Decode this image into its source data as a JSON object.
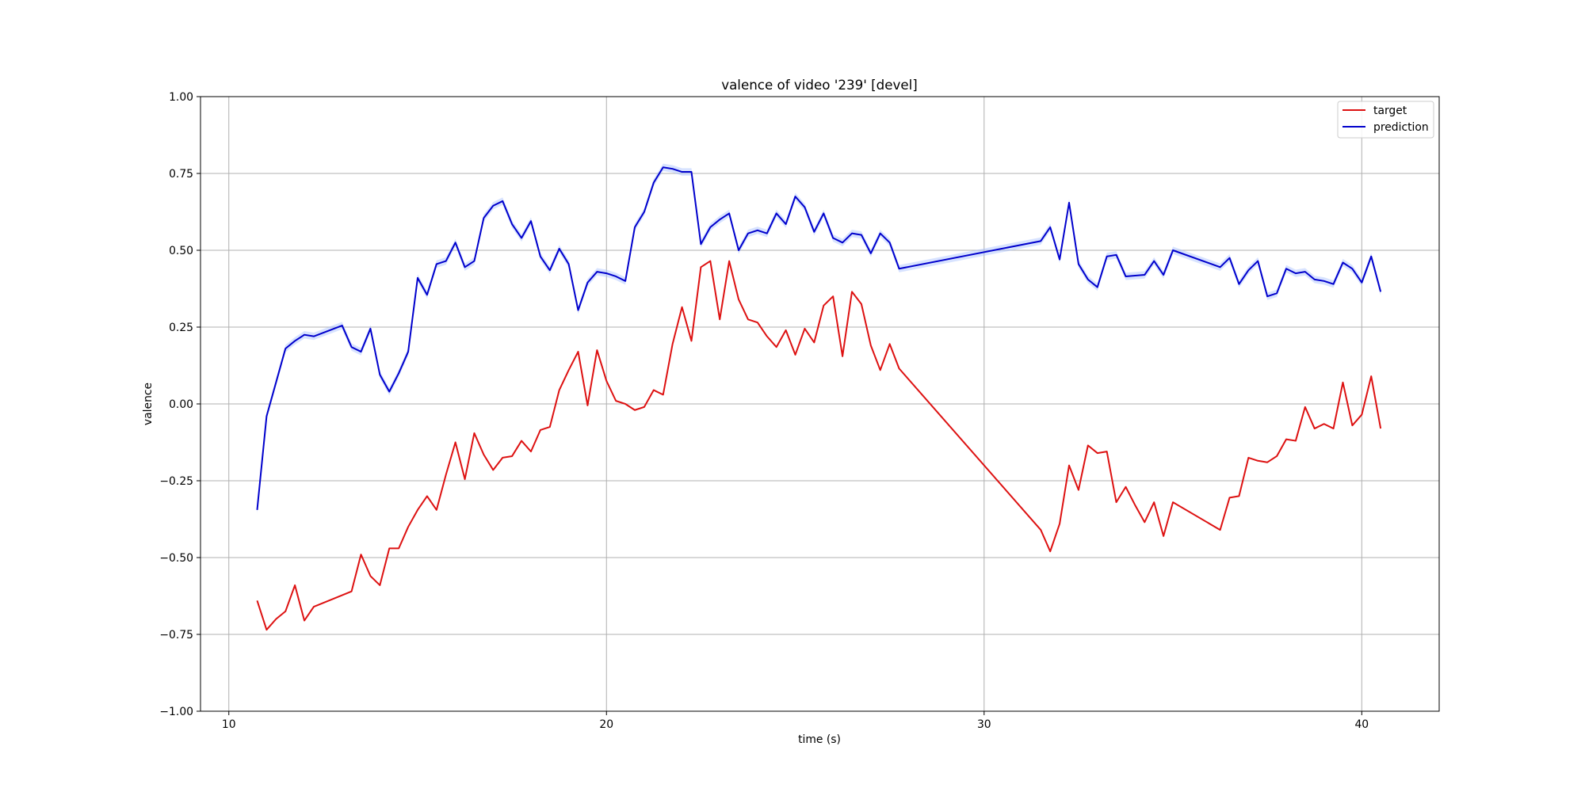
{
  "chart_data": {
    "type": "line",
    "title": "valence of video '239' [devel]",
    "xlabel": "time (s)",
    "ylabel": "valence",
    "xlim": [
      9.25,
      42.05
    ],
    "ylim": [
      -1.0,
      1.0
    ],
    "xticks": [
      10,
      20,
      30,
      40
    ],
    "xtick_labels": [
      "10",
      "20",
      "30",
      "40"
    ],
    "yticks": [
      -1.0,
      -0.75,
      -0.5,
      -0.25,
      0.0,
      0.25,
      0.5,
      0.75,
      1.0
    ],
    "ytick_labels": [
      "−1.00",
      "−0.75",
      "−0.50",
      "−0.25",
      "0.00",
      "0.25",
      "0.50",
      "0.75",
      "1.00"
    ],
    "grid": true,
    "legend_position": "top-right",
    "series": [
      {
        "name": "target",
        "color": "#dd1111",
        "points": [
          [
            10.75,
            -0.64
          ],
          [
            11.0,
            -0.735
          ],
          [
            11.25,
            -0.7
          ],
          [
            11.5,
            -0.675
          ],
          [
            11.75,
            -0.59
          ],
          [
            12.0,
            -0.705
          ],
          [
            12.25,
            -0.66
          ],
          [
            13.25,
            -0.61
          ],
          [
            13.5,
            -0.49
          ],
          [
            13.75,
            -0.56
          ],
          [
            14.0,
            -0.59
          ],
          [
            14.25,
            -0.47
          ],
          [
            14.5,
            -0.47
          ],
          [
            14.75,
            -0.4
          ],
          [
            15.0,
            -0.345
          ],
          [
            15.25,
            -0.3
          ],
          [
            15.5,
            -0.345
          ],
          [
            15.75,
            -0.23
          ],
          [
            16.0,
            -0.125
          ],
          [
            16.25,
            -0.245
          ],
          [
            16.5,
            -0.095
          ],
          [
            16.75,
            -0.165
          ],
          [
            17.0,
            -0.215
          ],
          [
            17.25,
            -0.175
          ],
          [
            17.5,
            -0.17
          ],
          [
            17.75,
            -0.12
          ],
          [
            18.0,
            -0.155
          ],
          [
            18.25,
            -0.085
          ],
          [
            18.5,
            -0.075
          ],
          [
            18.75,
            0.045
          ],
          [
            19.0,
            0.11
          ],
          [
            19.25,
            0.17
          ],
          [
            19.5,
            -0.005
          ],
          [
            19.75,
            0.175
          ],
          [
            20.0,
            0.075
          ],
          [
            20.25,
            0.01
          ],
          [
            20.5,
            0.0
          ],
          [
            20.75,
            -0.02
          ],
          [
            21.0,
            -0.01
          ],
          [
            21.25,
            0.045
          ],
          [
            21.5,
            0.03
          ],
          [
            21.75,
            0.195
          ],
          [
            22.0,
            0.315
          ],
          [
            22.25,
            0.205
          ],
          [
            22.5,
            0.445
          ],
          [
            22.75,
            0.465
          ],
          [
            23.0,
            0.275
          ],
          [
            23.25,
            0.465
          ],
          [
            23.5,
            0.34
          ],
          [
            23.75,
            0.275
          ],
          [
            24.0,
            0.265
          ],
          [
            24.25,
            0.22
          ],
          [
            24.5,
            0.185
          ],
          [
            24.75,
            0.24
          ],
          [
            25.0,
            0.16
          ],
          [
            25.25,
            0.245
          ],
          [
            25.5,
            0.2
          ],
          [
            25.75,
            0.32
          ],
          [
            26.0,
            0.35
          ],
          [
            26.25,
            0.155
          ],
          [
            26.5,
            0.365
          ],
          [
            26.75,
            0.325
          ],
          [
            27.0,
            0.19
          ],
          [
            27.25,
            0.11
          ],
          [
            27.5,
            0.195
          ],
          [
            27.75,
            0.115
          ],
          [
            31.5,
            -0.41
          ],
          [
            31.75,
            -0.48
          ],
          [
            32.0,
            -0.39
          ],
          [
            32.25,
            -0.2
          ],
          [
            32.5,
            -0.28
          ],
          [
            32.75,
            -0.135
          ],
          [
            33.0,
            -0.16
          ],
          [
            33.25,
            -0.155
          ],
          [
            33.5,
            -0.32
          ],
          [
            33.75,
            -0.27
          ],
          [
            34.0,
            -0.33
          ],
          [
            34.25,
            -0.385
          ],
          [
            34.5,
            -0.32
          ],
          [
            34.75,
            -0.43
          ],
          [
            35.0,
            -0.32
          ],
          [
            36.25,
            -0.41
          ],
          [
            36.5,
            -0.305
          ],
          [
            36.75,
            -0.3
          ],
          [
            37.0,
            -0.175
          ],
          [
            37.25,
            -0.185
          ],
          [
            37.5,
            -0.19
          ],
          [
            37.75,
            -0.17
          ],
          [
            38.0,
            -0.115
          ],
          [
            38.25,
            -0.12
          ],
          [
            38.5,
            -0.01
          ],
          [
            38.75,
            -0.08
          ],
          [
            39.0,
            -0.065
          ],
          [
            39.25,
            -0.08
          ],
          [
            39.5,
            0.07
          ],
          [
            39.75,
            -0.07
          ],
          [
            40.0,
            -0.035
          ],
          [
            40.25,
            0.09
          ],
          [
            40.5,
            -0.08
          ]
        ]
      },
      {
        "name": "prediction",
        "color": "#0000cc",
        "band_color": "#a8c0ff",
        "points": [
          [
            10.75,
            -0.345
          ],
          [
            11.0,
            -0.04
          ],
          [
            11.25,
            0.07
          ],
          [
            11.5,
            0.18
          ],
          [
            11.75,
            0.205
          ],
          [
            12.0,
            0.225
          ],
          [
            12.25,
            0.22
          ],
          [
            13.0,
            0.255
          ],
          [
            13.25,
            0.185
          ],
          [
            13.5,
            0.17
          ],
          [
            13.75,
            0.245
          ],
          [
            14.0,
            0.095
          ],
          [
            14.25,
            0.04
          ],
          [
            14.5,
            0.1
          ],
          [
            14.75,
            0.17
          ],
          [
            15.0,
            0.41
          ],
          [
            15.25,
            0.355
          ],
          [
            15.5,
            0.455
          ],
          [
            15.75,
            0.465
          ],
          [
            16.0,
            0.525
          ],
          [
            16.25,
            0.445
          ],
          [
            16.5,
            0.465
          ],
          [
            16.75,
            0.605
          ],
          [
            17.0,
            0.645
          ],
          [
            17.25,
            0.66
          ],
          [
            17.5,
            0.585
          ],
          [
            17.75,
            0.54
          ],
          [
            18.0,
            0.595
          ],
          [
            18.25,
            0.48
          ],
          [
            18.5,
            0.435
          ],
          [
            18.75,
            0.505
          ],
          [
            19.0,
            0.455
          ],
          [
            19.25,
            0.305
          ],
          [
            19.5,
            0.395
          ],
          [
            19.75,
            0.43
          ],
          [
            20.0,
            0.425
          ],
          [
            20.25,
            0.415
          ],
          [
            20.5,
            0.4
          ],
          [
            20.75,
            0.575
          ],
          [
            21.0,
            0.625
          ],
          [
            21.25,
            0.72
          ],
          [
            21.5,
            0.77
          ],
          [
            21.75,
            0.765
          ],
          [
            22.0,
            0.755
          ],
          [
            22.25,
            0.755
          ],
          [
            22.5,
            0.52
          ],
          [
            22.75,
            0.575
          ],
          [
            23.0,
            0.6
          ],
          [
            23.25,
            0.62
          ],
          [
            23.5,
            0.5
          ],
          [
            23.75,
            0.555
          ],
          [
            24.0,
            0.565
          ],
          [
            24.25,
            0.555
          ],
          [
            24.5,
            0.62
          ],
          [
            24.75,
            0.585
          ],
          [
            25.0,
            0.675
          ],
          [
            25.25,
            0.64
          ],
          [
            25.5,
            0.56
          ],
          [
            25.75,
            0.62
          ],
          [
            26.0,
            0.54
          ],
          [
            26.25,
            0.525
          ],
          [
            26.5,
            0.555
          ],
          [
            26.75,
            0.55
          ],
          [
            27.0,
            0.49
          ],
          [
            27.25,
            0.555
          ],
          [
            27.5,
            0.525
          ],
          [
            27.75,
            0.44
          ],
          [
            31.5,
            0.53
          ],
          [
            31.75,
            0.575
          ],
          [
            32.0,
            0.47
          ],
          [
            32.25,
            0.655
          ],
          [
            32.5,
            0.455
          ],
          [
            32.75,
            0.405
          ],
          [
            33.0,
            0.38
          ],
          [
            33.25,
            0.48
          ],
          [
            33.5,
            0.485
          ],
          [
            33.75,
            0.415
          ],
          [
            34.25,
            0.42
          ],
          [
            34.5,
            0.465
          ],
          [
            34.75,
            0.42
          ],
          [
            35.0,
            0.5
          ],
          [
            36.25,
            0.445
          ],
          [
            36.5,
            0.475
          ],
          [
            36.75,
            0.39
          ],
          [
            37.0,
            0.435
          ],
          [
            37.25,
            0.465
          ],
          [
            37.5,
            0.35
          ],
          [
            37.75,
            0.36
          ],
          [
            38.0,
            0.44
          ],
          [
            38.25,
            0.425
          ],
          [
            38.5,
            0.43
          ],
          [
            38.75,
            0.405
          ],
          [
            39.0,
            0.4
          ],
          [
            39.25,
            0.39
          ],
          [
            39.5,
            0.46
          ],
          [
            39.75,
            0.44
          ],
          [
            40.0,
            0.395
          ],
          [
            40.25,
            0.48
          ],
          [
            40.5,
            0.365
          ]
        ]
      }
    ]
  }
}
